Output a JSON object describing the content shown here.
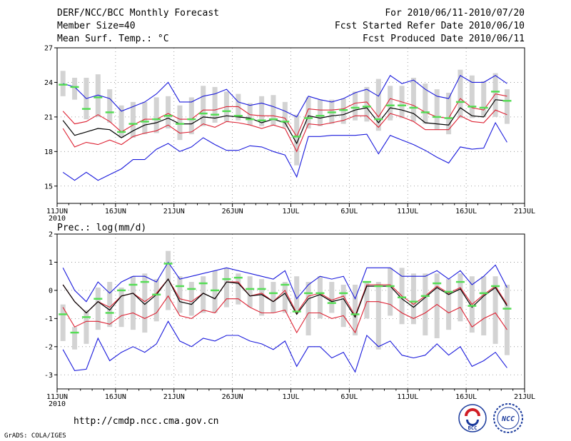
{
  "header": {
    "left": [
      "DERF/NCC/BCC Monthly Forecast",
      "Member Size=40",
      "Mean Surf. Temp.: °C"
    ],
    "right": [
      "For 2010/06/11-2010/07/20",
      "Fcst Started Refer Date 2010/06/10",
      "Fcst Produced Date 2010/06/11"
    ]
  },
  "footer": {
    "url": "http://cmdp.ncc.cma.gov.cn",
    "credit": "GrADS: COLA/IGES",
    "logos": [
      {
        "name": "BCC"
      },
      {
        "name": "NCC"
      }
    ]
  },
  "colors": {
    "box": "#d3d3d3",
    "median": "#55dd55",
    "mean": "#000000",
    "inner": "#dd2233",
    "outer": "#1a1adc",
    "grid": "#888888"
  },
  "chart_data": [
    {
      "type": "line",
      "title": "Mean Surf. Temp.: °C",
      "xlabel": "",
      "ylabel": "°C",
      "ylim": [
        13.5,
        27
      ],
      "yticks": [
        15,
        18,
        21,
        24,
        27
      ],
      "xlim": [
        0,
        40
      ],
      "xticks": [
        0,
        5,
        10,
        15,
        20,
        25,
        30,
        35,
        40
      ],
      "xtick_labels": [
        "11JUN",
        "16JUN",
        "21JUN",
        "26JUN",
        "1JUL",
        "6JUL",
        "11JUL",
        "16JUL",
        "21JUL"
      ],
      "year_label": "2010",
      "days": [
        0,
        1,
        2,
        3,
        4,
        5,
        6,
        7,
        8,
        9,
        10,
        11,
        12,
        13,
        14,
        15,
        16,
        17,
        18,
        19,
        20,
        21,
        22,
        23,
        24,
        25,
        26,
        27,
        28,
        29,
        30,
        31,
        32,
        33,
        34,
        35,
        36,
        37,
        38
      ],
      "box_low": [
        22.8,
        22.5,
        20.8,
        21.0,
        20.5,
        19.2,
        19.2,
        19.5,
        19.6,
        20.0,
        19.0,
        19.5,
        20.2,
        20.5,
        20.6,
        20.7,
        20.3,
        20.2,
        20.3,
        20.1,
        16.8,
        20.0,
        20.2,
        20.4,
        20.4,
        20.7,
        20.6,
        19.8,
        20.7,
        20.9,
        20.6,
        20.4,
        19.9,
        19.5,
        20.9,
        20.9,
        21.0,
        21.0,
        20.4
      ],
      "box_high": [
        25.0,
        24.4,
        24.4,
        24.7,
        23.4,
        22.0,
        22.3,
        22.3,
        22.7,
        22.8,
        22.0,
        22.7,
        23.7,
        23.6,
        23.2,
        23.0,
        22.2,
        22.8,
        22.9,
        22.3,
        21.2,
        22.7,
        22.5,
        22.5,
        22.6,
        23.2,
        23.6,
        24.3,
        23.7,
        23.7,
        24.4,
        23.9,
        23.4,
        23.1,
        25.1,
        24.6,
        24.1,
        24.8,
        23.4
      ],
      "series": [
        {
          "name": "median",
          "values": [
            23.8,
            23.6,
            21.7,
            22.7,
            21.4,
            19.7,
            20.4,
            20.6,
            20.8,
            21.1,
            20.4,
            20.8,
            21.3,
            21.2,
            21.5,
            21.1,
            20.8,
            20.7,
            20.8,
            20.6,
            19.3,
            20.9,
            21.1,
            21.4,
            21.6,
            21.8,
            21.9,
            20.8,
            22.0,
            22.0,
            21.8,
            21.4,
            21.0,
            20.9,
            22.3,
            21.9,
            21.8,
            23.2,
            22.4
          ]
        },
        {
          "name": "mean",
          "values": [
            20.7,
            19.4,
            19.7,
            20.0,
            19.9,
            19.2,
            19.8,
            20.3,
            20.5,
            20.9,
            20.4,
            20.4,
            21.0,
            20.9,
            21.1,
            21.0,
            20.9,
            20.5,
            20.8,
            20.5,
            18.7,
            21.1,
            20.9,
            21.1,
            21.2,
            21.6,
            21.8,
            20.5,
            21.8,
            21.6,
            21.3,
            20.5,
            20.4,
            20.3,
            21.8,
            21.1,
            21.0,
            22.5,
            22.4
          ]
        },
        {
          "name": "inner_high",
          "values": [
            21.5,
            20.4,
            20.6,
            21.2,
            20.6,
            19.7,
            20.3,
            20.8,
            20.8,
            21.3,
            20.8,
            20.8,
            21.6,
            21.6,
            21.9,
            21.9,
            21.2,
            21.1,
            21.1,
            20.9,
            19.3,
            21.7,
            21.6,
            21.6,
            21.7,
            22.2,
            22.3,
            21.0,
            22.6,
            22.3,
            22.0,
            21.4,
            21.0,
            20.9,
            22.6,
            21.8,
            21.6,
            23.0,
            22.8
          ]
        },
        {
          "name": "inner_low",
          "values": [
            20.0,
            18.4,
            18.8,
            18.6,
            19.0,
            18.6,
            19.3,
            19.6,
            19.8,
            20.3,
            19.6,
            19.7,
            20.4,
            20.1,
            20.6,
            20.5,
            20.3,
            20.0,
            20.3,
            20.0,
            18.0,
            20.4,
            20.3,
            20.5,
            20.7,
            21.1,
            21.1,
            20.1,
            21.3,
            21.0,
            20.6,
            19.9,
            19.9,
            19.9,
            21.1,
            20.6,
            20.5,
            21.6,
            21.2
          ]
        },
        {
          "name": "outer_high",
          "values": [
            23.9,
            23.6,
            22.6,
            22.9,
            22.6,
            21.5,
            21.9,
            22.3,
            23.0,
            24.0,
            22.3,
            22.3,
            22.8,
            23.0,
            23.4,
            22.3,
            22.0,
            22.2,
            21.9,
            21.5,
            21.0,
            22.8,
            22.5,
            22.3,
            22.6,
            23.1,
            23.4,
            22.8,
            24.6,
            23.9,
            24.2,
            23.4,
            22.8,
            22.6,
            24.6,
            24.0,
            24.0,
            24.6,
            23.9
          ]
        },
        {
          "name": "outer_low",
          "values": [
            16.2,
            15.5,
            16.2,
            15.5,
            16.0,
            16.5,
            17.3,
            17.3,
            18.2,
            18.7,
            18.0,
            18.4,
            19.2,
            18.6,
            18.1,
            18.1,
            18.5,
            18.4,
            18.0,
            17.7,
            15.8,
            19.3,
            19.3,
            19.4,
            19.4,
            19.4,
            19.5,
            17.8,
            19.4,
            19.0,
            18.6,
            18.1,
            17.5,
            17.0,
            18.4,
            18.2,
            18.3,
            20.5,
            18.8
          ]
        }
      ]
    },
    {
      "type": "line",
      "title": "Prec.: log(mm/d)",
      "xlabel": "",
      "ylabel": "log(mm/d)",
      "ylim": [
        -3.5,
        2
      ],
      "yticks": [
        -3,
        -2,
        -1,
        0,
        1,
        2
      ],
      "xlim": [
        0,
        40
      ],
      "xticks": [
        0,
        5,
        10,
        15,
        20,
        25,
        30,
        35,
        40
      ],
      "xtick_labels": [
        "11JUN",
        "16JUN",
        "21JUN",
        "26JUN",
        "1JUL",
        "6JUL",
        "11JUL",
        "16JUL",
        "21JUL"
      ],
      "year_label": "2010",
      "days": [
        0,
        1,
        2,
        3,
        4,
        5,
        6,
        7,
        8,
        9,
        10,
        11,
        12,
        13,
        14,
        15,
        16,
        17,
        18,
        19,
        20,
        21,
        22,
        23,
        24,
        25,
        26,
        27,
        28,
        29,
        30,
        31,
        32,
        33,
        34,
        35,
        36,
        37,
        38
      ],
      "box_low": [
        -1.8,
        -2.1,
        -1.9,
        -1.4,
        -1.3,
        -1.3,
        -1.4,
        -1.5,
        -1.1,
        -0.7,
        -0.8,
        -0.9,
        -0.8,
        -0.8,
        -0.6,
        -0.5,
        -0.6,
        -0.9,
        -0.8,
        -0.8,
        -0.7,
        -1.6,
        -1.0,
        -0.8,
        -1.3,
        -1.6,
        -1.0,
        -2.1,
        -0.9,
        -1.2,
        -1.2,
        -1.6,
        -1.7,
        -1.4,
        -1.1,
        -1.5,
        -1.6,
        -1.9,
        -2.3
      ],
      "box_high": [
        -0.5,
        -1.3,
        -0.7,
        0.1,
        0.3,
        0.1,
        0.5,
        0.6,
        0.4,
        1.4,
        0.5,
        0.3,
        0.5,
        0.7,
        0.8,
        0.6,
        0.5,
        0.4,
        0.3,
        0.3,
        0.5,
        0.3,
        0.5,
        0.3,
        0.2,
        0.2,
        0.3,
        0.3,
        0.8,
        0.8,
        0.6,
        0.6,
        0.6,
        0.4,
        0.6,
        0.5,
        0.5,
        0.5,
        0.2
      ],
      "series": [
        {
          "name": "median",
          "values": [
            -0.85,
            -1.5,
            -0.95,
            -0.3,
            -0.8,
            0.0,
            0.2,
            0.3,
            -0.15,
            0.95,
            0.15,
            0.05,
            0.25,
            0.0,
            0.4,
            0.45,
            0.05,
            0.05,
            -0.1,
            0.2,
            -0.75,
            -0.1,
            -0.1,
            -0.45,
            -0.1,
            -0.85,
            0.3,
            0.15,
            0.15,
            -0.25,
            -0.4,
            -0.2,
            0.25,
            -0.05,
            0.3,
            -0.55,
            -0.1,
            0.15,
            -0.65
          ]
        },
        {
          "name": "mean",
          "values": [
            0.2,
            -0.4,
            -0.8,
            -0.4,
            -0.7,
            -0.2,
            -0.1,
            -0.5,
            -0.15,
            0.4,
            -0.4,
            -0.5,
            -0.1,
            -0.3,
            0.3,
            0.25,
            -0.2,
            -0.15,
            -0.4,
            -0.1,
            -0.85,
            -0.3,
            -0.15,
            -0.4,
            -0.3,
            -0.95,
            0.15,
            0.15,
            0.15,
            -0.3,
            -0.6,
            -0.25,
            0.1,
            -0.15,
            0.05,
            -0.6,
            -0.2,
            0.1,
            -0.55
          ]
        },
        {
          "name": "inner_high",
          "values": [
            0.2,
            -0.4,
            -0.8,
            -0.4,
            -0.6,
            -0.2,
            -0.1,
            -0.4,
            -0.1,
            0.4,
            -0.3,
            -0.4,
            -0.1,
            -0.3,
            0.3,
            0.3,
            -0.2,
            -0.1,
            -0.4,
            0.0,
            -0.8,
            -0.2,
            -0.1,
            -0.35,
            -0.2,
            -0.9,
            0.2,
            0.2,
            0.2,
            -0.2,
            -0.5,
            -0.2,
            0.15,
            -0.1,
            0.1,
            -0.5,
            -0.15,
            0.15,
            -0.5
          ]
        },
        {
          "name": "inner_low",
          "values": [
            -0.6,
            -1.3,
            -1.1,
            -1.1,
            -1.2,
            -0.9,
            -0.8,
            -1.0,
            -0.8,
            -0.2,
            -0.9,
            -1.0,
            -0.7,
            -0.8,
            -0.3,
            -0.3,
            -0.6,
            -0.8,
            -0.8,
            -0.7,
            -1.5,
            -0.8,
            -0.8,
            -1.0,
            -0.9,
            -1.5,
            -0.4,
            -0.4,
            -0.5,
            -0.8,
            -1.0,
            -0.8,
            -0.5,
            -0.8,
            -0.6,
            -1.3,
            -1.0,
            -0.8,
            -1.4
          ]
        },
        {
          "name": "outer_high",
          "values": [
            0.8,
            0.0,
            -0.4,
            0.3,
            -0.1,
            0.3,
            0.5,
            0.5,
            0.3,
            1.0,
            0.4,
            0.5,
            0.6,
            0.7,
            0.8,
            0.7,
            0.6,
            0.5,
            0.4,
            0.7,
            -0.3,
            0.2,
            0.5,
            0.4,
            0.5,
            -0.3,
            0.8,
            0.8,
            0.8,
            0.5,
            0.5,
            0.5,
            0.7,
            0.4,
            0.7,
            0.2,
            0.5,
            0.9,
            0.1
          ]
        },
        {
          "name": "outer_low",
          "values": [
            -2.1,
            -2.85,
            -2.8,
            -1.7,
            -2.5,
            -2.2,
            -2.0,
            -2.2,
            -1.9,
            -1.1,
            -1.8,
            -2.0,
            -1.7,
            -1.8,
            -1.6,
            -1.6,
            -1.8,
            -1.9,
            -2.1,
            -1.8,
            -2.7,
            -2.0,
            -2.0,
            -2.4,
            -2.2,
            -2.9,
            -1.6,
            -2.0,
            -1.8,
            -2.3,
            -2.4,
            -2.3,
            -1.9,
            -2.3,
            -2.0,
            -2.7,
            -2.5,
            -2.2,
            -2.75
          ]
        }
      ]
    }
  ]
}
